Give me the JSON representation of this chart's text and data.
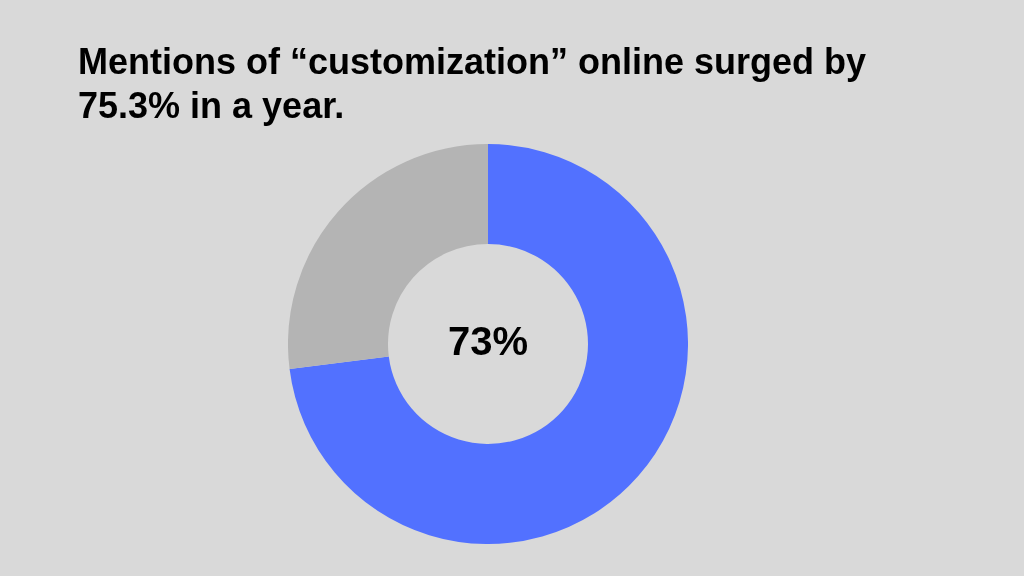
{
  "chart_data": {
    "type": "donut",
    "title": "Mentions of “customization” online surged by 75.3% in a year.",
    "categories": [
      null,
      null
    ],
    "values": [
      73,
      27
    ],
    "colors": [
      "#5271ff",
      "#b4b4b4"
    ],
    "value_labels": [
      "73%",
      null
    ],
    "legend": false
  }
}
